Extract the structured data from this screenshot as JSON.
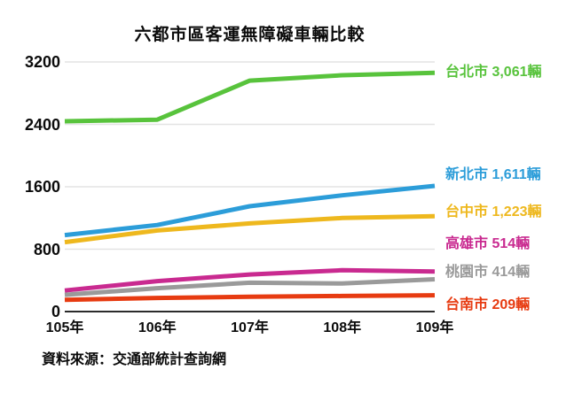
{
  "chart": {
    "title": "六都市區客運無障礙車輛比較",
    "source": "資料來源：交通部統計查詢網"
  },
  "chart_data": {
    "type": "line",
    "x": [
      "105年",
      "106年",
      "107年",
      "108年",
      "109年"
    ],
    "unit": "輛",
    "ylim": [
      0,
      3200
    ],
    "yticks": [
      0,
      800,
      1600,
      2400,
      3200
    ],
    "grid": true,
    "legend_position": "right-end-labels",
    "axis_line_color": "#2b2b2b",
    "grid_color": "#e3e3e3",
    "series": [
      {
        "id": "taipei",
        "name": "台北市",
        "color": "#58c33c",
        "values": [
          2440,
          2460,
          2960,
          3030,
          3061
        ],
        "end_label": "台北市 3,061輛"
      },
      {
        "id": "new-taipei",
        "name": "新北市",
        "color": "#2c9dd9",
        "values": [
          980,
          1110,
          1350,
          1490,
          1611
        ],
        "end_label": "新北市 1,611輛"
      },
      {
        "id": "taichung",
        "name": "台中市",
        "color": "#eeb81e",
        "values": [
          890,
          1040,
          1130,
          1200,
          1223
        ],
        "end_label": "台中市 1,223輛"
      },
      {
        "id": "kaohsiung",
        "name": "高雄市",
        "color": "#c92a90",
        "values": [
          270,
          390,
          475,
          530,
          514
        ],
        "end_label": "高雄市 514輛"
      },
      {
        "id": "taoyuan",
        "name": "桃園市",
        "color": "#9a9a9a",
        "values": [
          215,
          300,
          370,
          360,
          414
        ],
        "end_label": "桃園市 414輛"
      },
      {
        "id": "tainan",
        "name": "台南市",
        "color": "#e73b11",
        "values": [
          150,
          175,
          190,
          200,
          209
        ],
        "end_label": "台南市 209輛"
      }
    ]
  }
}
